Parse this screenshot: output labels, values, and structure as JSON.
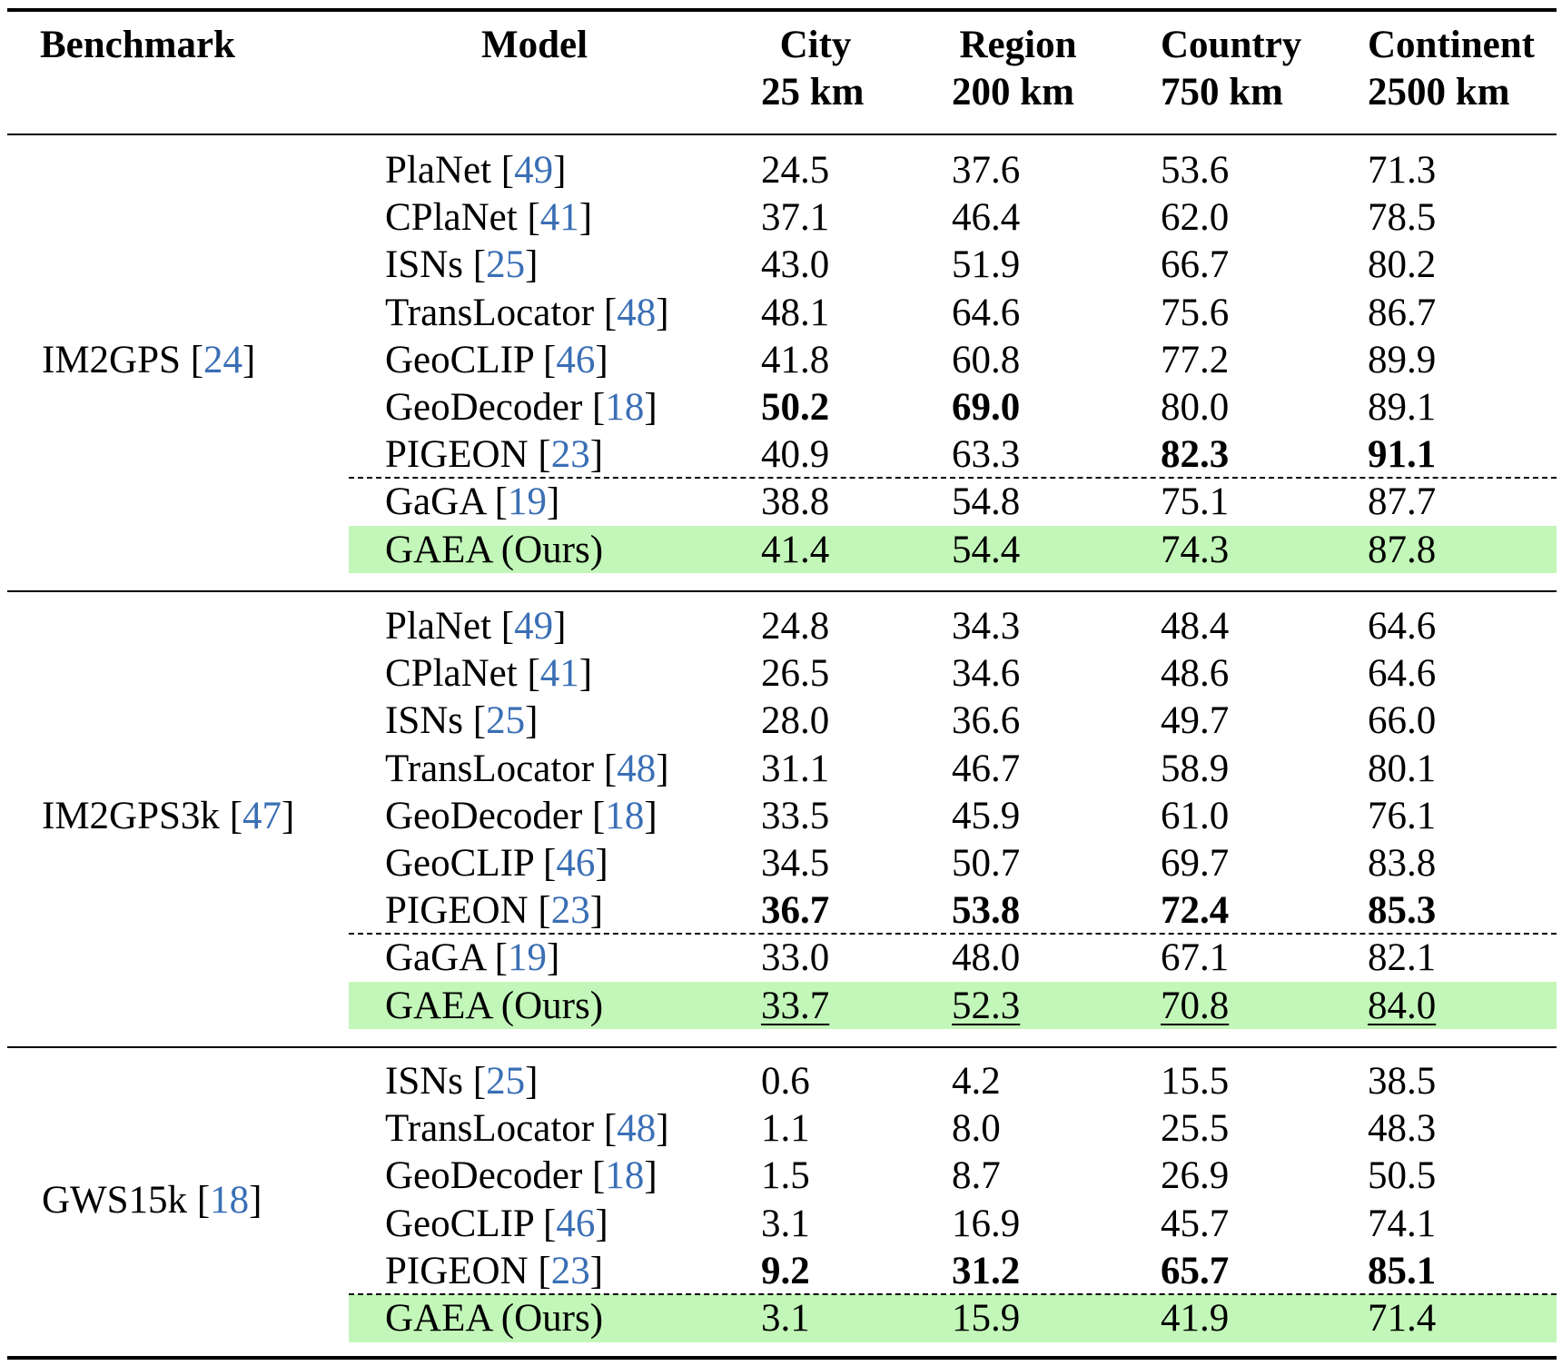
{
  "headers": {
    "benchmark": "Benchmark",
    "model": "Model",
    "city": [
      "City",
      "25 km"
    ],
    "region": [
      "Region",
      "200 km"
    ],
    "country": [
      "Country",
      "750 km"
    ],
    "continent": [
      "Continent",
      "2500 km"
    ]
  },
  "colors": {
    "highlight": "#c3f7b9",
    "citation": "#3a6fb5"
  },
  "groups": [
    {
      "benchmark": "IM2GPS",
      "cite": "24",
      "rows": [
        {
          "model": "PlaNet",
          "cite": "49",
          "values": [
            "24.5",
            "37.6",
            "53.6",
            "71.3"
          ],
          "bold": [
            false,
            false,
            false,
            false
          ],
          "underline": [
            false,
            false,
            false,
            false
          ],
          "dashed_above": false,
          "highlight": false
        },
        {
          "model": "CPlaNet",
          "cite": "41",
          "values": [
            "37.1",
            "46.4",
            "62.0",
            "78.5"
          ],
          "bold": [
            false,
            false,
            false,
            false
          ],
          "underline": [
            false,
            false,
            false,
            false
          ],
          "dashed_above": false,
          "highlight": false
        },
        {
          "model": "ISNs",
          "cite": "25",
          "values": [
            "43.0",
            "51.9",
            "66.7",
            "80.2"
          ],
          "bold": [
            false,
            false,
            false,
            false
          ],
          "underline": [
            false,
            false,
            false,
            false
          ],
          "dashed_above": false,
          "highlight": false
        },
        {
          "model": "TransLocator",
          "cite": "48",
          "values": [
            "48.1",
            "64.6",
            "75.6",
            "86.7"
          ],
          "bold": [
            false,
            false,
            false,
            false
          ],
          "underline": [
            false,
            false,
            false,
            false
          ],
          "dashed_above": false,
          "highlight": false
        },
        {
          "model": "GeoCLIP",
          "cite": "46",
          "values": [
            "41.8",
            "60.8",
            "77.2",
            "89.9"
          ],
          "bold": [
            false,
            false,
            false,
            false
          ],
          "underline": [
            false,
            false,
            false,
            false
          ],
          "dashed_above": false,
          "highlight": false
        },
        {
          "model": "GeoDecoder",
          "cite": "18",
          "values": [
            "50.2",
            "69.0",
            "80.0",
            "89.1"
          ],
          "bold": [
            true,
            true,
            false,
            false
          ],
          "underline": [
            false,
            false,
            false,
            false
          ],
          "dashed_above": false,
          "highlight": false
        },
        {
          "model": "PIGEON",
          "cite": "23",
          "values": [
            "40.9",
            "63.3",
            "82.3",
            "91.1"
          ],
          "bold": [
            false,
            false,
            true,
            true
          ],
          "underline": [
            false,
            false,
            false,
            false
          ],
          "dashed_above": false,
          "highlight": false
        },
        {
          "model": "GaGA",
          "cite": "19",
          "values": [
            "38.8",
            "54.8",
            "75.1",
            "87.7"
          ],
          "bold": [
            false,
            false,
            false,
            false
          ],
          "underline": [
            false,
            false,
            false,
            false
          ],
          "dashed_above": true,
          "highlight": false
        },
        {
          "model": "GAEA (Ours)",
          "cite": "",
          "values": [
            "41.4",
            "54.4",
            "74.3",
            "87.8"
          ],
          "bold": [
            false,
            false,
            false,
            false
          ],
          "underline": [
            false,
            false,
            false,
            false
          ],
          "dashed_above": false,
          "highlight": true
        }
      ]
    },
    {
      "benchmark": "IM2GPS3k",
      "cite": "47",
      "rows": [
        {
          "model": "PlaNet",
          "cite": "49",
          "values": [
            "24.8",
            "34.3",
            "48.4",
            "64.6"
          ],
          "bold": [
            false,
            false,
            false,
            false
          ],
          "underline": [
            false,
            false,
            false,
            false
          ],
          "dashed_above": false,
          "highlight": false
        },
        {
          "model": "CPlaNet",
          "cite": "41",
          "values": [
            "26.5",
            "34.6",
            "48.6",
            "64.6"
          ],
          "bold": [
            false,
            false,
            false,
            false
          ],
          "underline": [
            false,
            false,
            false,
            false
          ],
          "dashed_above": false,
          "highlight": false
        },
        {
          "model": "ISNs",
          "cite": "25",
          "values": [
            "28.0",
            "36.6",
            "49.7",
            "66.0"
          ],
          "bold": [
            false,
            false,
            false,
            false
          ],
          "underline": [
            false,
            false,
            false,
            false
          ],
          "dashed_above": false,
          "highlight": false
        },
        {
          "model": "TransLocator",
          "cite": "48",
          "values": [
            "31.1",
            "46.7",
            "58.9",
            "80.1"
          ],
          "bold": [
            false,
            false,
            false,
            false
          ],
          "underline": [
            false,
            false,
            false,
            false
          ],
          "dashed_above": false,
          "highlight": false
        },
        {
          "model": "GeoDecoder",
          "cite": "18",
          "values": [
            "33.5",
            "45.9",
            "61.0",
            "76.1"
          ],
          "bold": [
            false,
            false,
            false,
            false
          ],
          "underline": [
            false,
            false,
            false,
            false
          ],
          "dashed_above": false,
          "highlight": false
        },
        {
          "model": "GeoCLIP",
          "cite": "46",
          "values": [
            "34.5",
            "50.7",
            "69.7",
            "83.8"
          ],
          "bold": [
            false,
            false,
            false,
            false
          ],
          "underline": [
            false,
            false,
            false,
            false
          ],
          "dashed_above": false,
          "highlight": false
        },
        {
          "model": "PIGEON",
          "cite": "23",
          "values": [
            "36.7",
            "53.8",
            "72.4",
            "85.3"
          ],
          "bold": [
            true,
            true,
            true,
            true
          ],
          "underline": [
            false,
            false,
            false,
            false
          ],
          "dashed_above": false,
          "highlight": false
        },
        {
          "model": "GaGA",
          "cite": "19",
          "values": [
            "33.0",
            "48.0",
            "67.1",
            "82.1"
          ],
          "bold": [
            false,
            false,
            false,
            false
          ],
          "underline": [
            false,
            false,
            false,
            false
          ],
          "dashed_above": true,
          "highlight": false
        },
        {
          "model": "GAEA (Ours)",
          "cite": "",
          "values": [
            "33.7",
            "52.3",
            "70.8",
            "84.0"
          ],
          "bold": [
            false,
            false,
            false,
            false
          ],
          "underline": [
            true,
            true,
            true,
            true
          ],
          "dashed_above": false,
          "highlight": true
        }
      ]
    },
    {
      "benchmark": "GWS15k",
      "cite": "18",
      "rows": [
        {
          "model": "ISNs",
          "cite": "25",
          "values": [
            "0.6",
            "4.2",
            "15.5",
            "38.5"
          ],
          "bold": [
            false,
            false,
            false,
            false
          ],
          "underline": [
            false,
            false,
            false,
            false
          ],
          "dashed_above": false,
          "highlight": false
        },
        {
          "model": "TransLocator",
          "cite": "48",
          "values": [
            "1.1",
            "8.0",
            "25.5",
            "48.3"
          ],
          "bold": [
            false,
            false,
            false,
            false
          ],
          "underline": [
            false,
            false,
            false,
            false
          ],
          "dashed_above": false,
          "highlight": false
        },
        {
          "model": "GeoDecoder",
          "cite": "18",
          "values": [
            "1.5",
            "8.7",
            "26.9",
            "50.5"
          ],
          "bold": [
            false,
            false,
            false,
            false
          ],
          "underline": [
            false,
            false,
            false,
            false
          ],
          "dashed_above": false,
          "highlight": false
        },
        {
          "model": "GeoCLIP",
          "cite": "46",
          "values": [
            "3.1",
            "16.9",
            "45.7",
            "74.1"
          ],
          "bold": [
            false,
            false,
            false,
            false
          ],
          "underline": [
            false,
            false,
            false,
            false
          ],
          "dashed_above": false,
          "highlight": false
        },
        {
          "model": "PIGEON",
          "cite": "23",
          "values": [
            "9.2",
            "31.2",
            "65.7",
            "85.1"
          ],
          "bold": [
            true,
            true,
            true,
            true
          ],
          "underline": [
            false,
            false,
            false,
            false
          ],
          "dashed_above": false,
          "highlight": false
        },
        {
          "model": "GAEA (Ours)",
          "cite": "",
          "values": [
            "3.1",
            "15.9",
            "41.9",
            "71.4"
          ],
          "bold": [
            false,
            false,
            false,
            false
          ],
          "underline": [
            false,
            false,
            false,
            false
          ],
          "dashed_above": true,
          "highlight": true
        }
      ]
    }
  ]
}
